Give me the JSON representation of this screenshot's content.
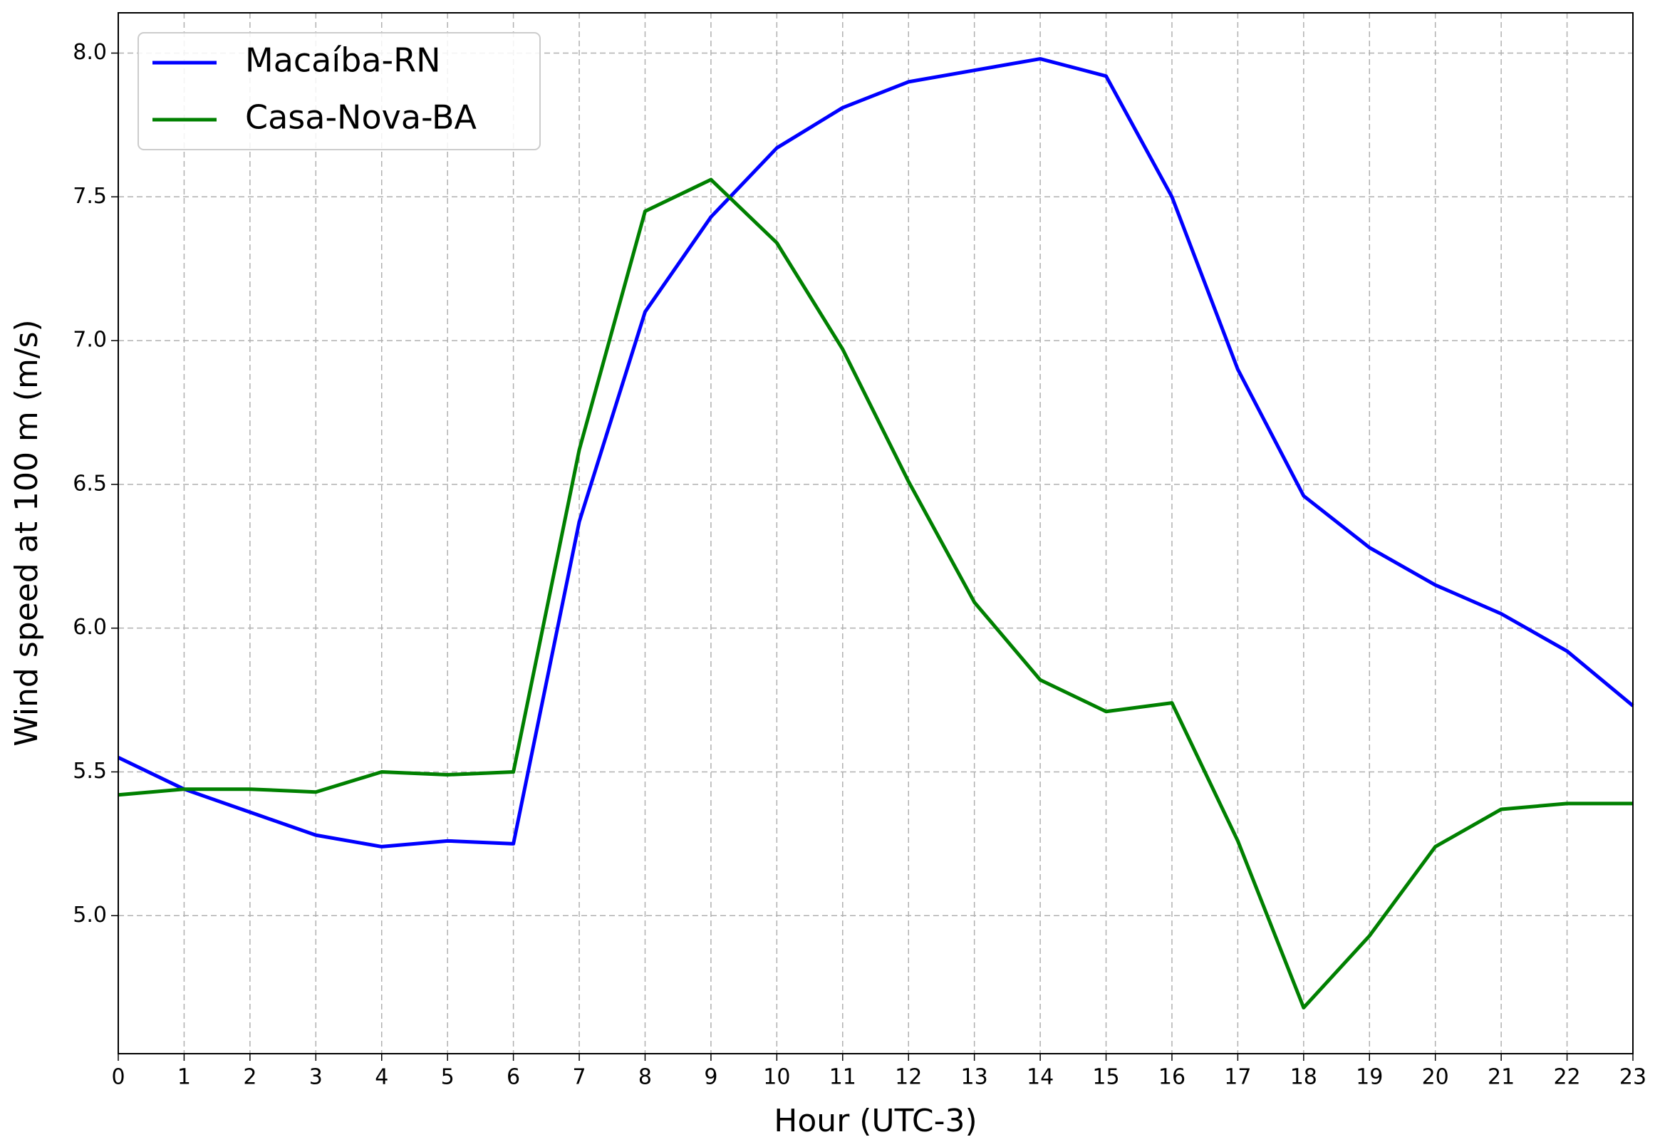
{
  "chart_data": {
    "type": "line",
    "xlabel": "Hour (UTC-3)",
    "ylabel": "Wind speed at 100 m (m/s)",
    "x": [
      0,
      1,
      2,
      3,
      4,
      5,
      6,
      7,
      8,
      9,
      10,
      11,
      12,
      13,
      14,
      15,
      16,
      17,
      18,
      19,
      20,
      21,
      22,
      23
    ],
    "series": [
      {
        "name": "Macaíba-RN",
        "color": "#0000ff",
        "values": [
          5.55,
          5.44,
          5.36,
          5.28,
          5.24,
          5.26,
          5.25,
          6.37,
          7.1,
          7.43,
          7.67,
          7.81,
          7.9,
          7.94,
          7.98,
          7.92,
          7.5,
          6.9,
          6.46,
          6.28,
          6.15,
          6.05,
          5.92,
          5.73
        ]
      },
      {
        "name": "Casa-Nova-BA",
        "color": "#008000",
        "values": [
          5.42,
          5.44,
          5.44,
          5.43,
          5.5,
          5.49,
          5.5,
          6.62,
          7.45,
          7.56,
          7.34,
          6.97,
          6.51,
          6.09,
          5.82,
          5.71,
          5.74,
          5.26,
          4.68,
          4.93,
          5.24,
          5.37,
          5.39,
          5.39
        ]
      }
    ],
    "xlim": [
      0,
      23
    ],
    "xticks": [
      0,
      1,
      2,
      3,
      4,
      5,
      6,
      7,
      8,
      9,
      10,
      11,
      12,
      13,
      14,
      15,
      16,
      17,
      18,
      19,
      20,
      21,
      22,
      23
    ],
    "ylim": [
      4.52,
      8.14
    ],
    "yticks": [
      {
        "value": 5,
        "label": "5.0"
      },
      {
        "value": 5.5,
        "label": "5.5"
      },
      {
        "value": 6,
        "label": "6.0"
      },
      {
        "value": 6.5,
        "label": "6.5"
      },
      {
        "value": 7,
        "label": "7.0"
      },
      {
        "value": 7.5,
        "label": "7.5"
      },
      {
        "value": 8,
        "label": "8.0"
      }
    ],
    "grid": true,
    "legend": "upper-left"
  }
}
